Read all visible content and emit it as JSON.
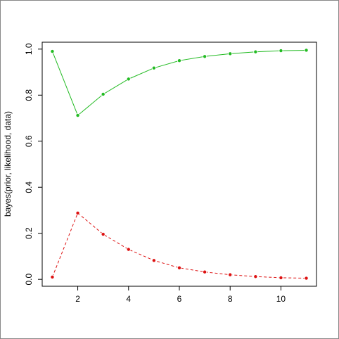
{
  "chart_data": {
    "type": "line",
    "y_label": "bayes(prior, likelihood, data)",
    "x": [
      1,
      2,
      3,
      4,
      5,
      6,
      7,
      8,
      9,
      10,
      11
    ],
    "series": [
      {
        "color": "#22bb22",
        "dashed": false,
        "values": [
          0.99,
          0.712,
          0.804,
          0.87,
          0.918,
          0.95,
          0.968,
          0.98,
          0.988,
          0.993,
          0.995
        ]
      },
      {
        "color": "#dd1111",
        "dashed": true,
        "values": [
          0.01,
          0.288,
          0.196,
          0.13,
          0.082,
          0.05,
          0.032,
          0.02,
          0.012,
          0.007,
          0.005
        ]
      }
    ],
    "xlim": [
      0.6,
      11.4
    ],
    "ylim": [
      -0.03,
      1.03
    ],
    "xticks": [
      2,
      4,
      6,
      8,
      10
    ],
    "yticks": [
      {
        "value": 0,
        "label": "0.0"
      },
      0.2,
      0.4,
      0.6,
      0.8,
      {
        "value": 1,
        "label": "1.0"
      }
    ]
  }
}
